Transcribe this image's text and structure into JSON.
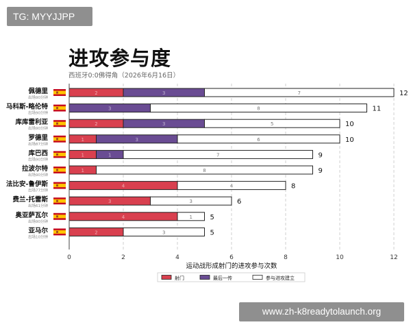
{
  "badges": {
    "top_left": "TG: MYYJJPP",
    "bottom_right": "www.zh-k8readytolaunch.org"
  },
  "chart_data": {
    "type": "bar",
    "orientation": "horizontal",
    "stacked": true,
    "title": "进攻参与度",
    "subtitle": "西班牙0:0佛得角（2026年6月16日）",
    "xlabel": "运动战形成射门的进攻参与次数",
    "ylabel": "",
    "xlim": [
      0,
      12
    ],
    "xticks": [
      0,
      2,
      4,
      6,
      8,
      10,
      12
    ],
    "grid": "vertical-dashed",
    "legend_position": "bottom-center",
    "categories": [
      "佩德里",
      "马科斯-略伦特",
      "库库雷利亚",
      "罗德里",
      "库巴西",
      "拉波尔特",
      "法比安-鲁伊斯",
      "费兰-托雷斯",
      "奥亚萨瓦尔",
      "亚马尔"
    ],
    "minutes": [
      "出场90分钟",
      "出场90分钟",
      "出场90分钟",
      "出场87分钟",
      "出场90分钟",
      "出场90分钟",
      "出场77分钟",
      "出场61分钟",
      "出场90分钟",
      "出场10分钟"
    ],
    "flag": "spain-flag",
    "series": [
      {
        "name": "射门",
        "color": "#d9404f",
        "values": [
          2,
          0,
          2,
          1,
          1,
          1,
          4,
          3,
          4,
          2
        ]
      },
      {
        "name": "最后一传",
        "color": "#6a4c93",
        "values": [
          3,
          3,
          3,
          3,
          1,
          0,
          0,
          0,
          0,
          0
        ]
      },
      {
        "name": "参与进攻建立",
        "color": "#ffffff",
        "values": [
          7,
          8,
          5,
          6,
          7,
          8,
          4,
          3,
          1,
          3
        ]
      }
    ],
    "totals": [
      12,
      11,
      10,
      10,
      9,
      9,
      8,
      6,
      5,
      5
    ]
  }
}
